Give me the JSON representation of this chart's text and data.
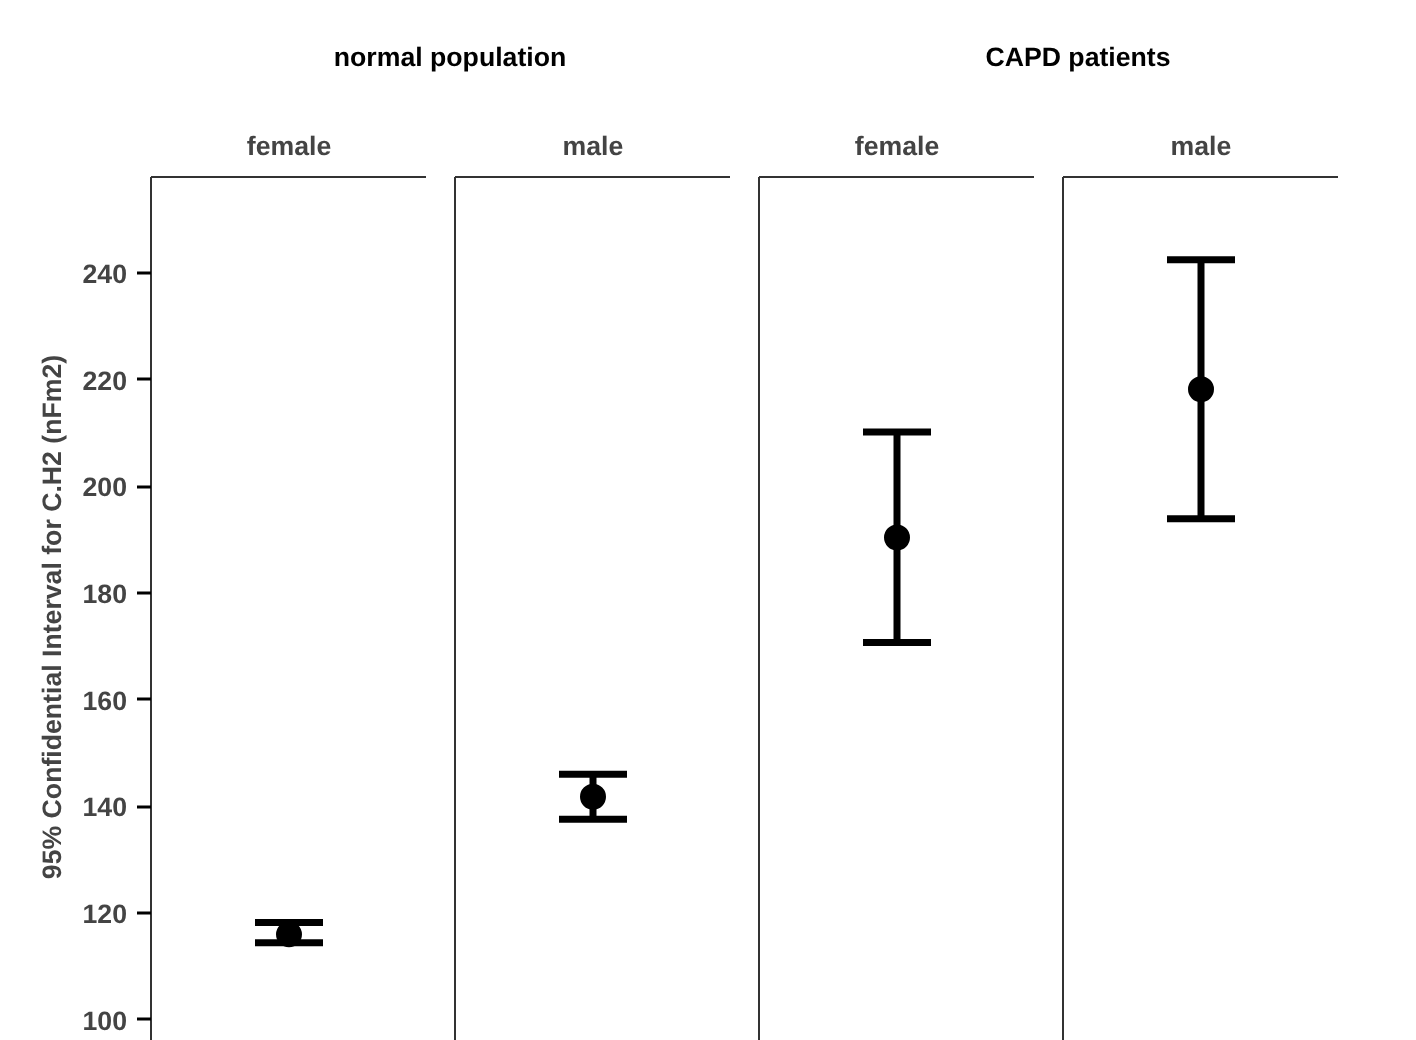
{
  "chart_data": {
    "type": "scatter",
    "annotations": [
      "normal population",
      "CAPD patients"
    ],
    "ylabel": "95% Confidential Interval for C.H2 (nFm2)",
    "categories": [
      "female",
      "male",
      "female",
      "male"
    ],
    "values": [
      116,
      141.8,
      190.4,
      218.2
    ],
    "errors": [
      [
        114.4,
        118.2
      ],
      [
        137.6,
        146
      ],
      [
        170.7,
        210.2
      ],
      [
        193.9,
        242.5
      ]
    ],
    "color": "#000000",
    "marker": "circle",
    "ylim": [
      93,
      258
    ],
    "yticks": [
      100,
      120,
      140,
      160,
      180,
      200,
      220,
      240
    ]
  }
}
